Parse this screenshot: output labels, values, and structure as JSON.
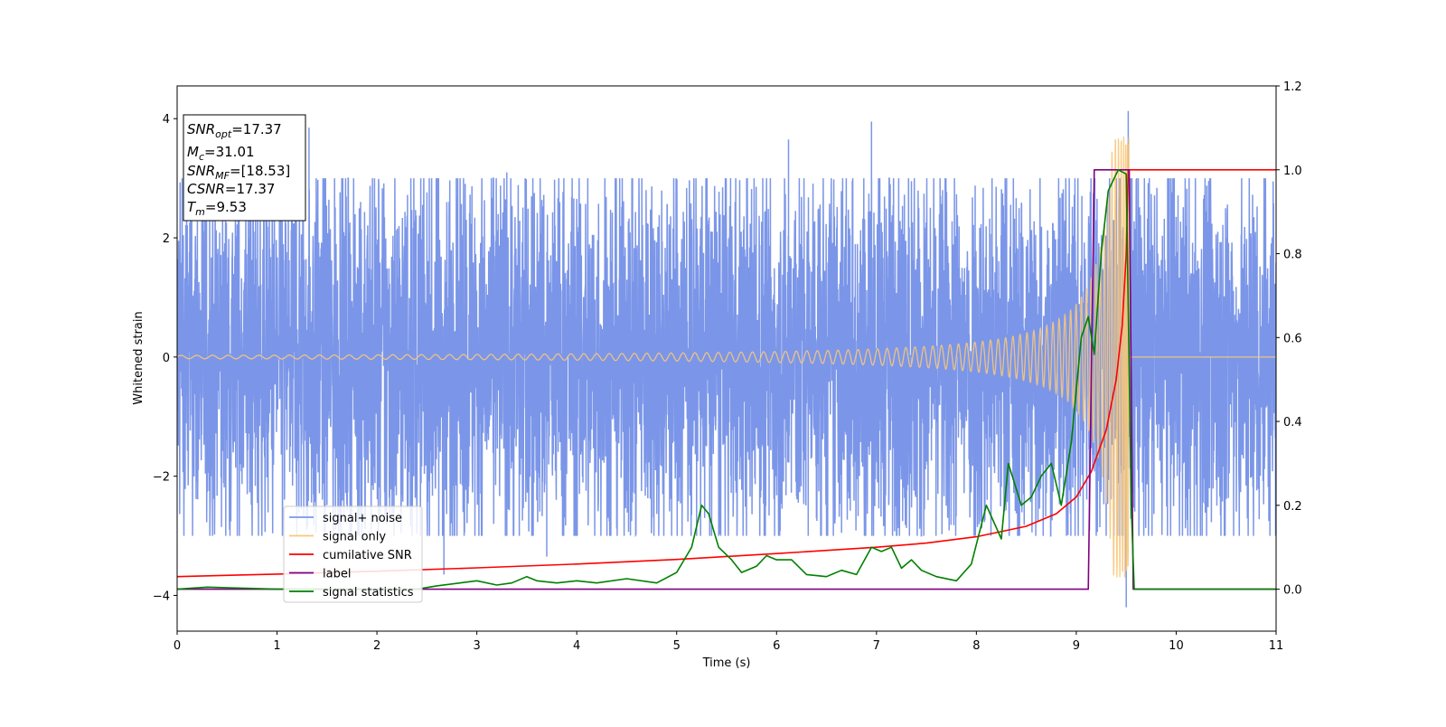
{
  "chart_data": {
    "type": "line",
    "title": "",
    "xlabel": "Time (s)",
    "ylabel": "Whitened strain",
    "ylabel_right": "",
    "xlim": [
      0,
      11
    ],
    "ylim": [
      -4.6,
      4.55
    ],
    "ylim_right": [
      -0.1,
      1.2
    ],
    "xticks": [
      "0",
      "1",
      "2",
      "3",
      "4",
      "5",
      "6",
      "7",
      "8",
      "9",
      "10",
      "11"
    ],
    "yticks_left": [
      "4",
      "2",
      "0",
      "−2",
      "−4"
    ],
    "yticks_right": [
      "1.2",
      "1.0",
      "0.8",
      "0.6",
      "0.4",
      "0.2",
      "0.0"
    ],
    "grid": false,
    "legend_position": "lower-left",
    "info_box": {
      "lines": [
        {
          "main": "SNR",
          "sub": "opt",
          "value": "=17.37"
        },
        {
          "main": "M",
          "sub": "c",
          "value": "=31.01"
        },
        {
          "main": "SNR",
          "sub": "MF",
          "value": "=[18.53]"
        },
        {
          "main": "CSNR",
          "sub": "",
          "value": "=17.37"
        },
        {
          "main": "T",
          "sub": "m",
          "value": "=9.53"
        }
      ]
    },
    "series": [
      {
        "name": "signal+ noise",
        "axis": "left",
        "color": "#7b96e8",
        "kind": "noise",
        "noise_amplitude_typical": 2.3,
        "spikes": [
          [
            0.05,
            3.0
          ],
          [
            1.05,
            3.5
          ],
          [
            1.32,
            3.85
          ],
          [
            2.67,
            -3.65
          ],
          [
            3.3,
            3.1
          ],
          [
            3.7,
            -3.35
          ],
          [
            6.12,
            3.65
          ],
          [
            6.95,
            3.95
          ],
          [
            7.35,
            2.95
          ],
          [
            9.52,
            4.13
          ],
          [
            9.5,
            -4.2
          ]
        ]
      },
      {
        "name": "signal only",
        "axis": "left",
        "color": "#f8c77a",
        "kind": "chirp",
        "merger_time": 9.53,
        "peak": 3.7
      },
      {
        "name": "cumilative SNR",
        "axis": "right",
        "color": "#ff0000",
        "points": [
          [
            0,
            0.03
          ],
          [
            1,
            0.036
          ],
          [
            2,
            0.043
          ],
          [
            3,
            0.051
          ],
          [
            4,
            0.06
          ],
          [
            5,
            0.071
          ],
          [
            6,
            0.085
          ],
          [
            7,
            0.1
          ],
          [
            7.5,
            0.11
          ],
          [
            8,
            0.125
          ],
          [
            8.5,
            0.15
          ],
          [
            8.8,
            0.18
          ],
          [
            9.0,
            0.22
          ],
          [
            9.15,
            0.28
          ],
          [
            9.3,
            0.38
          ],
          [
            9.4,
            0.5
          ],
          [
            9.46,
            0.63
          ],
          [
            9.5,
            0.8
          ],
          [
            9.52,
            1.0
          ],
          [
            9.53,
            1.0
          ],
          [
            11,
            1.0
          ]
        ]
      },
      {
        "name": "label",
        "axis": "right",
        "color": "#800080",
        "points": [
          [
            0,
            0.0
          ],
          [
            9.12,
            0.0
          ],
          [
            9.18,
            1.0
          ],
          [
            9.53,
            1.0
          ],
          [
            9.57,
            0.0
          ],
          [
            11,
            0.0
          ]
        ]
      },
      {
        "name": "signal statistics",
        "axis": "right",
        "color": "#008000",
        "points": [
          [
            0,
            0.0
          ],
          [
            0.3,
            0.005
          ],
          [
            1.0,
            0.0
          ],
          [
            2.4,
            0.0
          ],
          [
            2.6,
            0.008
          ],
          [
            3.0,
            0.02
          ],
          [
            3.2,
            0.01
          ],
          [
            3.35,
            0.015
          ],
          [
            3.5,
            0.03
          ],
          [
            3.6,
            0.02
          ],
          [
            3.8,
            0.015
          ],
          [
            4.0,
            0.02
          ],
          [
            4.2,
            0.015
          ],
          [
            4.5,
            0.025
          ],
          [
            4.8,
            0.015
          ],
          [
            5.0,
            0.04
          ],
          [
            5.15,
            0.1
          ],
          [
            5.25,
            0.2
          ],
          [
            5.32,
            0.18
          ],
          [
            5.42,
            0.1
          ],
          [
            5.55,
            0.07
          ],
          [
            5.65,
            0.04
          ],
          [
            5.8,
            0.055
          ],
          [
            5.9,
            0.08
          ],
          [
            6.0,
            0.07
          ],
          [
            6.15,
            0.07
          ],
          [
            6.3,
            0.035
          ],
          [
            6.5,
            0.03
          ],
          [
            6.65,
            0.045
          ],
          [
            6.8,
            0.035
          ],
          [
            6.95,
            0.1
          ],
          [
            7.05,
            0.09
          ],
          [
            7.15,
            0.1
          ],
          [
            7.25,
            0.05
          ],
          [
            7.35,
            0.07
          ],
          [
            7.45,
            0.045
          ],
          [
            7.6,
            0.03
          ],
          [
            7.8,
            0.02
          ],
          [
            7.95,
            0.06
          ],
          [
            8.1,
            0.2
          ],
          [
            8.25,
            0.12
          ],
          [
            8.32,
            0.3
          ],
          [
            8.45,
            0.2
          ],
          [
            8.55,
            0.22
          ],
          [
            8.65,
            0.27
          ],
          [
            8.75,
            0.3
          ],
          [
            8.85,
            0.2
          ],
          [
            8.95,
            0.35
          ],
          [
            9.05,
            0.6
          ],
          [
            9.12,
            0.65
          ],
          [
            9.18,
            0.56
          ],
          [
            9.25,
            0.8
          ],
          [
            9.32,
            0.95
          ],
          [
            9.42,
            1.0
          ],
          [
            9.5,
            0.99
          ],
          [
            9.55,
            0.2
          ],
          [
            9.58,
            0.0
          ],
          [
            11,
            0.0
          ]
        ]
      }
    ]
  }
}
